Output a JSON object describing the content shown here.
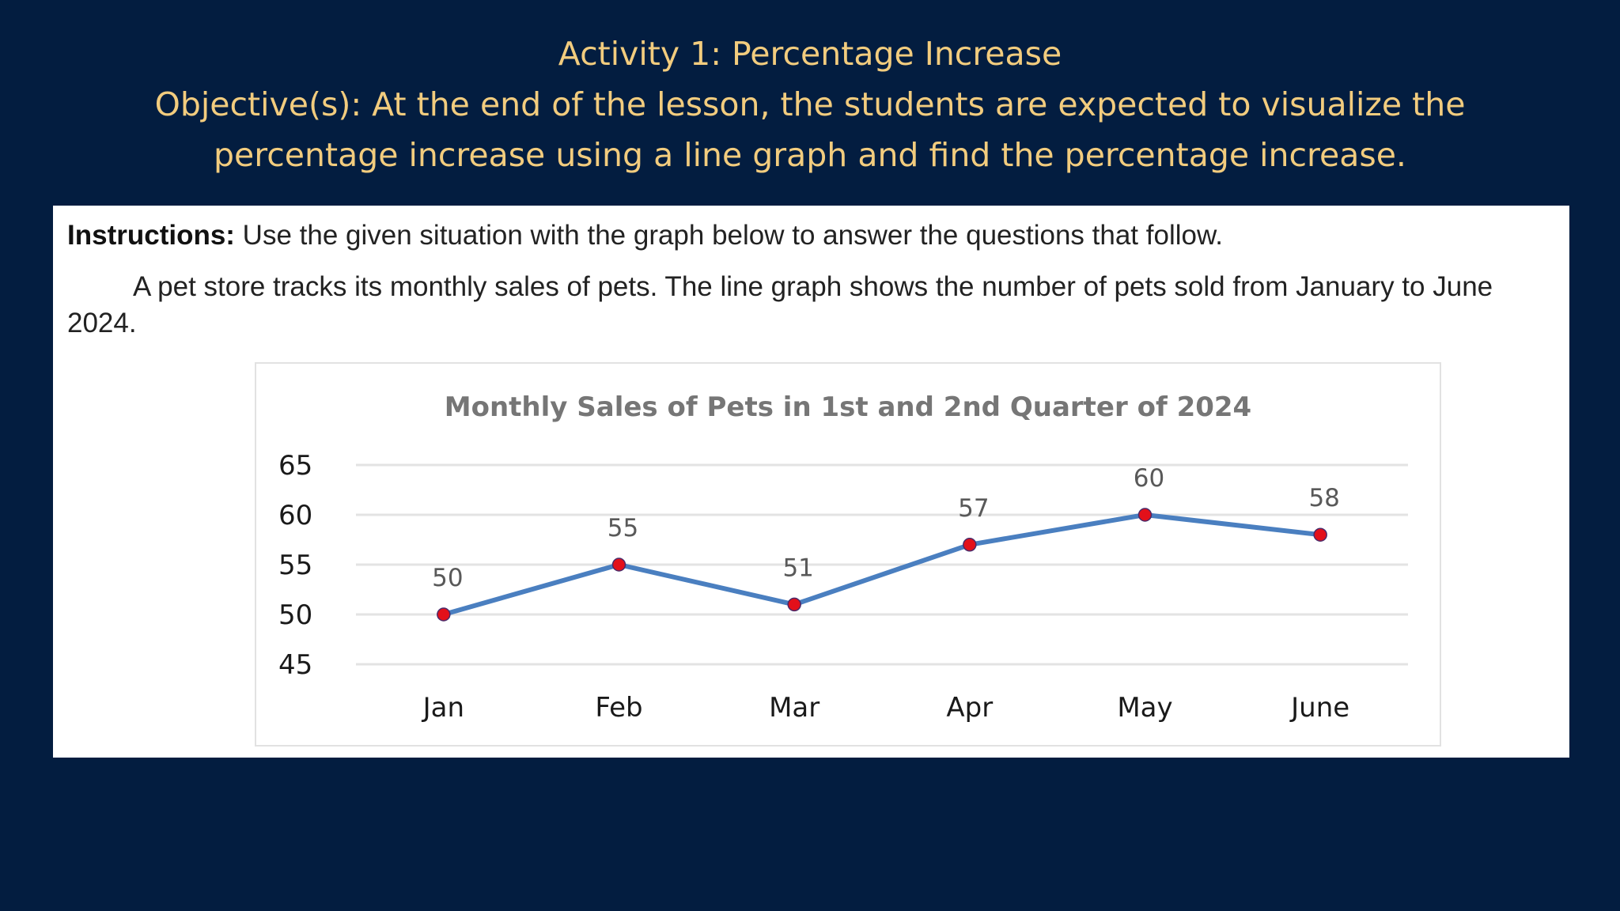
{
  "slide": {
    "title": "Activity 1: Percentage Increase",
    "objective_line1": "Objective(s): At the end of the lesson, the students are expected to visualize the",
    "objective_line2": "percentage increase using a line graph and find the percentage increase."
  },
  "worksheet": {
    "instructions_label": "Instructions:",
    "instructions_text": " Use the given situation with the graph below to answer the questions that follow.",
    "situation": "A pet store tracks its monthly sales of pets. The line graph shows the number of pets sold from January to June 2024."
  },
  "chart_data": {
    "type": "line",
    "title": "Monthly Sales of Pets in 1st and 2nd Quarter of 2024",
    "xlabel": "",
    "ylabel": "",
    "categories": [
      "Jan",
      "Feb",
      "Mar",
      "Apr",
      "May",
      "June"
    ],
    "values": [
      50,
      55,
      51,
      57,
      60,
      58
    ],
    "data_labels": [
      "50",
      "55",
      "51",
      "57",
      "60",
      "58"
    ],
    "ylim": [
      45,
      65
    ],
    "yticks": [
      45,
      50,
      55,
      60,
      65
    ],
    "ytick_labels": [
      "45",
      "50",
      "55",
      "60",
      "65"
    ],
    "grid": true,
    "legend": "none",
    "line_color": "#4a7fc0",
    "marker_color": "#e3101a",
    "colors": {
      "slide_background": "#031d40",
      "heading_text": "#f2cc7e"
    }
  }
}
